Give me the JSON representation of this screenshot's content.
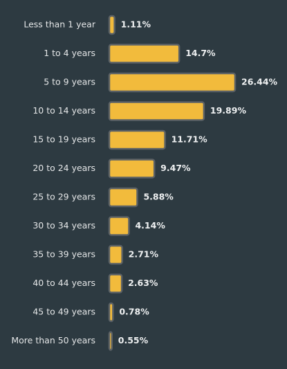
{
  "chart_data": {
    "type": "bar",
    "orientation": "horizontal",
    "categories": [
      "Less than 1 year",
      "1 to 4 years",
      "5 to 9 years",
      "10 to 14 years",
      "15 to 19 years",
      "20 to 24 years",
      "25 to 29 years",
      "30 to 34 years",
      "35 to 39 years",
      "40 to 44 years",
      "45 to 49 years",
      "More than 50 years"
    ],
    "values": [
      1.11,
      14.7,
      26.44,
      19.89,
      11.71,
      9.47,
      5.88,
      4.14,
      2.71,
      2.63,
      0.78,
      0.55
    ],
    "value_labels": [
      "1.11%",
      "14.7%",
      "26.44%",
      "19.89%",
      "11.71%",
      "9.47%",
      "5.88%",
      "4.14%",
      "2.71%",
      "2.63%",
      "0.78%",
      "0.55%"
    ],
    "color": "#f2bb3c"
  }
}
